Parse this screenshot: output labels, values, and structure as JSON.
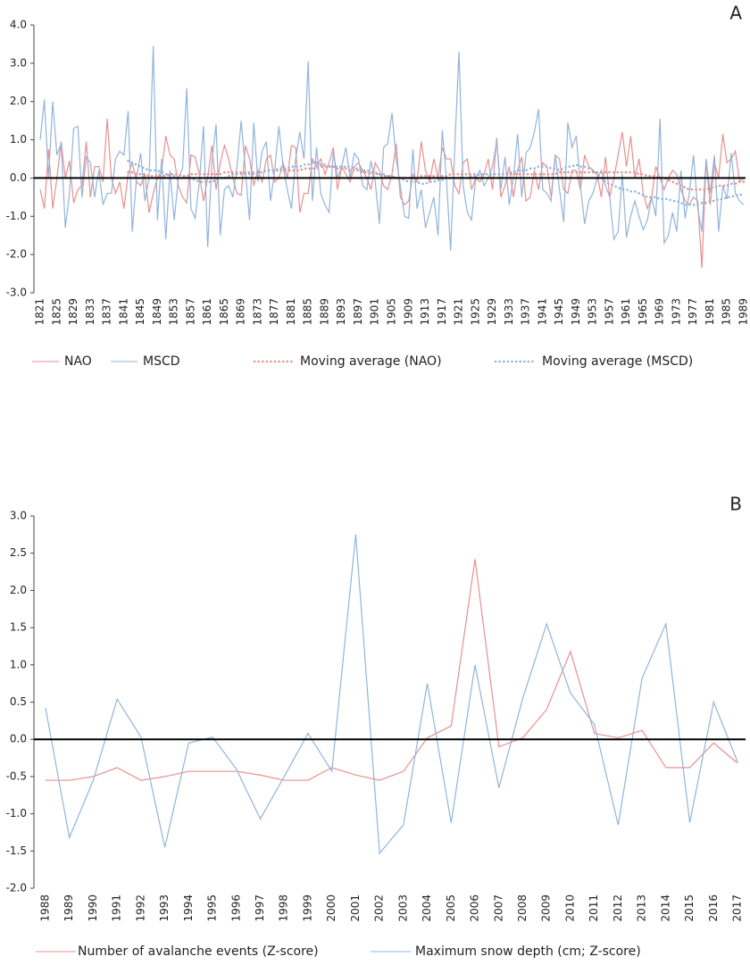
{
  "chart_data": [
    {
      "type": "line",
      "panel": "A",
      "categories": [
        "1821",
        null,
        null,
        null,
        "1825",
        null,
        null,
        null,
        "1829",
        null,
        null,
        null,
        "1833",
        null,
        null,
        null,
        "1837",
        null,
        null,
        null,
        "1841",
        null,
        null,
        null,
        "1845",
        null,
        null,
        null,
        "1849",
        null,
        null,
        null,
        "1853",
        null,
        null,
        null,
        "1857",
        null,
        null,
        null,
        "1861",
        null,
        null,
        null,
        "1865",
        null,
        null,
        null,
        "1869",
        null,
        null,
        null,
        "1873",
        null,
        null,
        null,
        "1877",
        null,
        null,
        null,
        "1881",
        null,
        null,
        null,
        "1885",
        null,
        null,
        null,
        "1889",
        null,
        null,
        null,
        "1893",
        null,
        null,
        null,
        "1897",
        null,
        null,
        null,
        "1901",
        null,
        null,
        null,
        "1905",
        null,
        null,
        null,
        "1909",
        null,
        null,
        null,
        "1913",
        null,
        null,
        null,
        "1917",
        null,
        null,
        null,
        "1921",
        null,
        null,
        null,
        "1925",
        null,
        null,
        null,
        "1929",
        null,
        null,
        null,
        "1933",
        null,
        null,
        null,
        "1937",
        null,
        null,
        null,
        "1941",
        null,
        null,
        null,
        "1945",
        null,
        null,
        null,
        "1949",
        null,
        null,
        null,
        "1953",
        null,
        null,
        null,
        "1957",
        null,
        null,
        null,
        "1961",
        null,
        null,
        null,
        "1965",
        null,
        null,
        null,
        "1969",
        null,
        null,
        null,
        "1973",
        null,
        null,
        null,
        "1977",
        null,
        null,
        null,
        "1981",
        null,
        null,
        null,
        "1985",
        null,
        null,
        null,
        "1989"
      ],
      "ylim": [
        -3,
        4
      ],
      "yticks": [
        {
          "value": 4,
          "label": "4.0"
        },
        {
          "value": 3,
          "label": "3.0"
        },
        {
          "value": 2,
          "label": "2.0"
        },
        {
          "value": 1,
          "label": "1.0"
        },
        {
          "value": 0,
          "label": "0.0"
        },
        {
          "value": -1,
          "label": "-1.0"
        },
        {
          "value": -2,
          "label": "-2.0"
        },
        {
          "value": -3,
          "label": "-3.0"
        }
      ],
      "series": [
        {
          "name": "NAO",
          "color": "#e8908f",
          "style": "solid",
          "values": [
            -0.3,
            -0.8,
            0.75,
            -0.8,
            0.0,
            0.95,
            0.0,
            0.45,
            -0.65,
            -0.3,
            -0.2,
            0.95,
            -0.5,
            0.3,
            0.3,
            -0.1,
            1.55,
            0.0,
            -0.4,
            -0.1,
            -0.8,
            0.1,
            0.4,
            -0.1,
            -0.2,
            0.1,
            -0.9,
            -0.4,
            0.0,
            0.2,
            1.1,
            0.6,
            0.5,
            -0.2,
            -0.5,
            -0.65,
            0.6,
            0.55,
            0.1,
            -0.6,
            0.0,
            0.85,
            -0.3,
            0.4,
            0.85,
            0.5,
            0.0,
            -0.4,
            -0.45,
            0.85,
            0.5,
            -0.2,
            0.2,
            -0.1,
            0.5,
            0.6,
            -0.1,
            0.0,
            0.4,
            0.0,
            0.85,
            0.8,
            -0.9,
            -0.4,
            -0.4,
            0.5,
            0.3,
            0.5,
            0.1,
            0.4,
            0.8,
            -0.3,
            0.3,
            0.1,
            -0.1,
            0.3,
            0.4,
            0.2,
            0.0,
            -0.3,
            0.4,
            0.2,
            -0.2,
            -0.3,
            0.1,
            0.9,
            -0.5,
            -0.7,
            -0.6,
            0.1,
            -0.1,
            0.95,
            0.2,
            -0.1,
            0.5,
            0.0,
            0.8,
            0.5,
            0.5,
            -0.2,
            -0.4,
            0.4,
            0.5,
            -0.3,
            0.0,
            -0.1,
            0.1,
            0.5,
            -0.3,
            1.05,
            -0.5,
            -0.2,
            0.3,
            -0.5,
            0.2,
            0.55,
            -0.6,
            -0.5,
            0.2,
            -0.3,
            0.4,
            0.3,
            -0.5,
            0.6,
            0.5,
            -0.3,
            -0.4,
            0.2,
            0.2,
            -0.3,
            0.6,
            0.3,
            0.2,
            0.1,
            -0.5,
            0.55,
            -0.5,
            0.0,
            0.6,
            1.2,
            0.3,
            1.1,
            0.0,
            0.5,
            -0.4,
            -0.8,
            -0.5,
            0.3,
            0.0,
            -0.3,
            0.0,
            0.2,
            0.1,
            -0.3,
            -0.6,
            -0.7,
            -0.5,
            -0.6,
            -2.35,
            0.45,
            -0.7,
            0.4,
            0.0,
            1.15,
            0.4,
            0.5,
            0.7,
            -0.1,
            0.0
          ]
        },
        {
          "name": "MSCD",
          "color": "#92b4db",
          "style": "solid",
          "values": [
            1.0,
            2.05,
            0.0,
            2.0,
            0.6,
            0.9,
            -1.3,
            -0.4,
            1.3,
            1.35,
            -0.5,
            0.55,
            0.4,
            -0.5,
            0.2,
            -0.7,
            -0.4,
            -0.4,
            0.5,
            0.7,
            0.6,
            1.75,
            -1.4,
            0.0,
            0.65,
            -0.6,
            0.0,
            3.45,
            -1.1,
            0.5,
            -1.6,
            0.2,
            -1.1,
            0.0,
            0.25,
            2.35,
            -0.8,
            -1.05,
            -0.1,
            1.35,
            -1.8,
            0.4,
            1.4,
            -1.5,
            -0.3,
            -0.2,
            -0.5,
            0.3,
            1.5,
            0.2,
            -1.1,
            1.45,
            -0.1,
            0.7,
            0.95,
            -0.6,
            0.2,
            1.35,
            0.3,
            -0.3,
            -0.8,
            0.5,
            1.2,
            0.5,
            3.05,
            -0.6,
            0.8,
            -0.4,
            -0.7,
            -0.9,
            0.7,
            0.0,
            0.3,
            0.8,
            0.0,
            0.65,
            0.5,
            -0.2,
            -0.3,
            0.45,
            -0.1,
            -1.2,
            0.8,
            0.9,
            1.7,
            0.5,
            -0.2,
            -1.0,
            -1.05,
            0.75,
            -0.8,
            -0.3,
            -1.3,
            -0.9,
            -0.5,
            -1.5,
            1.25,
            0.0,
            -1.9,
            0.8,
            3.3,
            -0.2,
            -0.9,
            -1.1,
            0.0,
            0.2,
            -0.2,
            0.0,
            0.3,
            0.95,
            -0.3,
            0.55,
            -0.7,
            0.0,
            1.15,
            -0.5,
            0.65,
            0.8,
            1.2,
            1.8,
            -0.3,
            -0.4,
            -0.6,
            0.6,
            -0.3,
            -1.15,
            1.45,
            0.8,
            1.1,
            -0.2,
            -1.2,
            -0.6,
            -0.4,
            0.0,
            0.2,
            -0.2,
            -0.5,
            -1.6,
            -1.4,
            0.1,
            -1.55,
            -1.0,
            -0.6,
            -1.0,
            -1.35,
            -1.1,
            -0.5,
            -1.0,
            1.55,
            -1.7,
            -1.5,
            -0.9,
            -1.4,
            0.2,
            -1.05,
            -0.4,
            0.6,
            -0.8,
            -1.4,
            0.5,
            -0.4,
            0.6,
            -1.4,
            -0.2,
            -0.55,
            0.65,
            -0.4,
            -0.6,
            -0.7
          ]
        },
        {
          "name": "Moving average (NAO)",
          "color": "#e8908f",
          "style": "dotted",
          "values": [
            null,
            null,
            null,
            null,
            null,
            null,
            null,
            null,
            null,
            null,
            null,
            null,
            null,
            null,
            null,
            null,
            null,
            null,
            null,
            null,
            null,
            0.15,
            0.15,
            0.1,
            0.1,
            0.1,
            0.05,
            0.05,
            0.05,
            0.05,
            0.05,
            0.1,
            0.1,
            0.1,
            0.05,
            0.05,
            0.1,
            0.1,
            0.1,
            0.1,
            0.1,
            0.1,
            0.1,
            0.1,
            0.15,
            0.15,
            0.15,
            0.15,
            0.15,
            0.15,
            0.15,
            0.15,
            0.15,
            0.15,
            0.2,
            0.2,
            0.2,
            0.2,
            0.2,
            0.2,
            0.2,
            0.2,
            0.2,
            0.25,
            0.25,
            0.25,
            0.25,
            0.3,
            0.3,
            0.3,
            0.3,
            0.25,
            0.25,
            0.25,
            0.2,
            0.2,
            0.2,
            0.15,
            0.15,
            0.1,
            0.1,
            0.1,
            0.05,
            0.05,
            0.05,
            0.0,
            0.0,
            0.0,
            0.0,
            0.0,
            0.0,
            0.05,
            0.05,
            0.05,
            0.05,
            0.05,
            0.05,
            0.05,
            0.1,
            0.1,
            0.1,
            0.1,
            0.1,
            0.1,
            0.1,
            0.1,
            0.1,
            0.1,
            0.1,
            0.1,
            0.1,
            0.1,
            0.1,
            0.1,
            0.1,
            0.1,
            0.1,
            0.1,
            0.1,
            0.1,
            0.1,
            0.1,
            0.1,
            0.1,
            0.15,
            0.15,
            0.15,
            0.15,
            0.15,
            0.15,
            0.15,
            0.15,
            0.15,
            0.15,
            0.15,
            0.15,
            0.15,
            0.15,
            0.15,
            0.15,
            0.15,
            0.15,
            0.15,
            0.1,
            0.1,
            0.05,
            0.05,
            0.05,
            0.0,
            0.0,
            -0.05,
            -0.1,
            -0.15,
            -0.2,
            -0.25,
            -0.3,
            -0.3,
            -0.3,
            -0.3,
            -0.3,
            -0.25,
            -0.25,
            -0.2,
            -0.2,
            -0.2,
            -0.15,
            -0.15,
            -0.1,
            -0.1
          ]
        },
        {
          "name": "Moving average (MSCD)",
          "color": "#92b4db",
          "style": "dotted",
          "values": [
            null,
            null,
            null,
            null,
            null,
            null,
            null,
            null,
            null,
            null,
            null,
            null,
            null,
            null,
            null,
            null,
            null,
            null,
            null,
            null,
            null,
            0.45,
            0.4,
            0.35,
            0.3,
            0.25,
            0.2,
            0.2,
            0.2,
            0.15,
            0.1,
            0.1,
            0.05,
            0.0,
            0.0,
            0.0,
            0.0,
            -0.05,
            -0.1,
            -0.1,
            -0.1,
            -0.1,
            -0.05,
            0.0,
            0.0,
            0.05,
            0.1,
            0.1,
            0.1,
            0.1,
            0.1,
            0.1,
            0.15,
            0.15,
            0.2,
            0.2,
            0.2,
            0.25,
            0.25,
            0.25,
            0.3,
            0.3,
            0.3,
            0.35,
            0.35,
            0.4,
            0.4,
            0.35,
            0.35,
            0.3,
            0.3,
            0.3,
            0.3,
            0.3,
            0.3,
            0.25,
            0.25,
            0.2,
            0.2,
            0.15,
            0.15,
            0.1,
            0.1,
            0.05,
            0.05,
            0.0,
            0.0,
            -0.05,
            -0.1,
            -0.1,
            -0.1,
            -0.15,
            -0.15,
            -0.1,
            -0.1,
            -0.05,
            -0.05,
            0.0,
            0.0,
            0.0,
            0.0,
            0.0,
            0.0,
            0.05,
            0.05,
            0.1,
            0.1,
            0.1,
            0.1,
            0.1,
            0.1,
            0.1,
            0.15,
            0.15,
            0.2,
            0.2,
            0.2,
            0.25,
            0.25,
            0.3,
            0.3,
            0.3,
            0.25,
            0.25,
            0.2,
            0.25,
            0.3,
            0.3,
            0.35,
            0.3,
            0.3,
            0.25,
            0.2,
            0.1,
            0.0,
            -0.1,
            -0.15,
            -0.2,
            -0.25,
            -0.3,
            -0.3,
            -0.35,
            -0.35,
            -0.4,
            -0.45,
            -0.5,
            -0.5,
            -0.5,
            -0.55,
            -0.55,
            -0.55,
            -0.6,
            -0.6,
            -0.65,
            -0.7,
            -0.7,
            -0.7,
            -0.7,
            -0.65,
            -0.65,
            -0.6,
            -0.6,
            -0.55,
            -0.55,
            -0.5,
            -0.5,
            -0.45,
            -0.45,
            -0.4
          ]
        }
      ]
    },
    {
      "type": "line",
      "panel": "B",
      "categories": [
        "1988",
        "1989",
        "1990",
        "1991",
        "1992",
        "1993",
        "1994",
        "1995",
        "1996",
        "1997",
        "1998",
        "1999",
        "2000",
        "2001",
        "2002",
        "2003",
        "2004",
        "2005",
        "2006",
        "2007",
        "2008",
        "2009",
        "2010",
        "2011",
        "2012",
        "2013",
        "2014",
        "2015",
        "2016",
        "2017"
      ],
      "ylim": [
        -2,
        3
      ],
      "yticks": [
        {
          "value": 3,
          "label": "3.0"
        },
        2.5,
        {
          "value": 2,
          "label": "2.0"
        },
        1.5,
        {
          "value": 1,
          "label": "1.0"
        },
        0.5,
        {
          "value": 0,
          "label": "0.0"
        },
        -0.5,
        {
          "value": -1,
          "label": "-1.0"
        },
        -1.5,
        {
          "value": -2,
          "label": "-2.0"
        }
      ],
      "series": [
        {
          "name": "Number of avalanche events (Z-score)",
          "color": "#e8908f",
          "style": "solid",
          "values": [
            -0.55,
            -0.55,
            -0.5,
            -0.38,
            -0.55,
            -0.5,
            -0.43,
            -0.43,
            -0.43,
            -0.48,
            -0.55,
            -0.55,
            -0.38,
            -0.48,
            -0.55,
            -0.43,
            0.02,
            0.18,
            2.42,
            -0.1,
            0.02,
            0.4,
            1.18,
            0.08,
            0.02,
            0.12,
            -0.38,
            -0.38,
            -0.05,
            -0.32
          ]
        },
        {
          "name": "Maximum snow depth (cm; Z-score)",
          "color": "#92b4db",
          "style": "solid",
          "values": [
            0.42,
            -1.32,
            -0.55,
            0.54,
            0.03,
            -1.45,
            -0.05,
            0.03,
            -0.4,
            -1.07,
            -0.5,
            0.08,
            -0.43,
            2.75,
            -1.53,
            -1.15,
            0.75,
            -1.12,
            1.0,
            -0.65,
            0.55,
            1.55,
            0.62,
            0.2,
            -1.15,
            0.82,
            1.55,
            -1.12,
            0.5,
            -0.3
          ]
        }
      ]
    }
  ]
}
